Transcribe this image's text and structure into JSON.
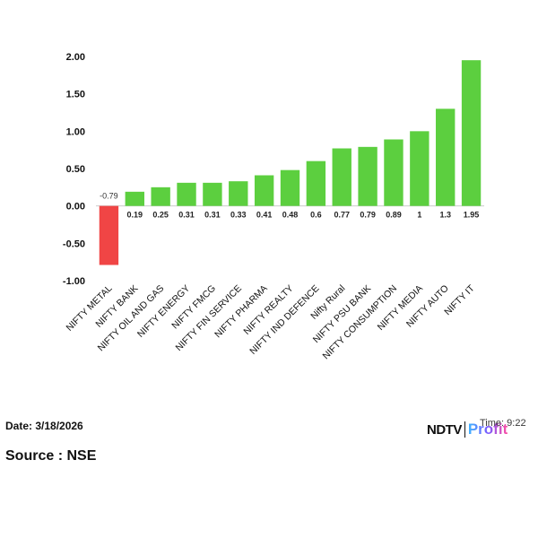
{
  "chart_data": {
    "type": "bar",
    "categories": [
      "NIFTY METAL",
      "NIFTY BANK",
      "NIFTY OIL AND GAS",
      "NIFTY ENERGY",
      "NIFTY FMCG",
      "NIFTY FIN SERVICE",
      "NIFTY PHARMA",
      "NIFTY REALTY",
      "NIFTY IND DEFENCE",
      "Nifty Rural",
      "NIFTY PSU BANK",
      "NIFTY CONSUMPTION",
      "NIFTY MEDIA",
      "NIFTY AUTO",
      "NIFTY IT"
    ],
    "values": [
      -0.79,
      0.19,
      0.25,
      0.31,
      0.31,
      0.33,
      0.41,
      0.48,
      0.6,
      0.77,
      0.79,
      0.89,
      1,
      1.3,
      1.95
    ],
    "value_labels": [
      "-0.79",
      "0.19",
      "0.25",
      "0.31",
      "0.31",
      "0.33",
      "0.41",
      "0.48",
      "0.6",
      "0.77",
      "0.79",
      "0.89",
      "1",
      "1.3",
      "1.95"
    ],
    "yticks": [
      "2.00",
      "1.50",
      "1.00",
      "0.50",
      "0.00",
      "-0.50",
      "-1.00"
    ],
    "ytick_values": [
      2.0,
      1.5,
      1.0,
      0.5,
      0.0,
      -0.5,
      -1.0
    ],
    "ylim": [
      -1.0,
      2.0
    ],
    "positive_color": "#5ccf3f",
    "negative_color": "#f04545",
    "grid": false
  },
  "footer": {
    "date": "Date: 3/18/2026",
    "source": "Source : NSE",
    "time": "Time: 9:22"
  },
  "brand": {
    "ndtv": "NDTV",
    "profit": "Profit"
  }
}
